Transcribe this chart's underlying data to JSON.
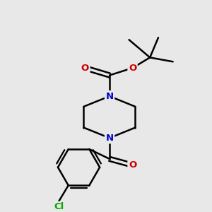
{
  "background_color": "#e8e8e8",
  "bond_color": "#000000",
  "atom_colors": {
    "N": "#0000cc",
    "O": "#cc0000",
    "Cl": "#00aa00",
    "C": "#000000"
  },
  "bond_width": 1.8,
  "figsize": [
    3.0,
    3.0
  ],
  "dpi": 100
}
